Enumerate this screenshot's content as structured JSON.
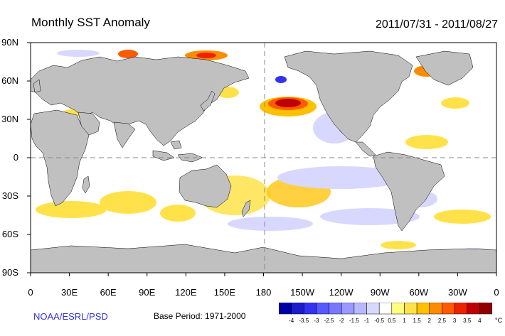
{
  "title": "Monthly SST Anomaly",
  "period": "2011/07/31 - 2011/08/27",
  "credit": "NOAA/ESRL/PSD",
  "base_period": "Base Period: 1971-2000",
  "y_ticks": [
    "90N",
    "60N",
    "30N",
    "0",
    "30S",
    "60S",
    "90S"
  ],
  "x_ticks": [
    "0",
    "30E",
    "60E",
    "90E",
    "120E",
    "150E",
    "180",
    "150W",
    "120W",
    "90W",
    "60W",
    "30W",
    "0"
  ],
  "colorbar": {
    "labels": [
      "-4",
      "-3.5",
      "-3",
      "-2.5",
      "-2",
      "-1.5",
      "-1",
      "-0.5",
      "0.5",
      "1",
      "1.5",
      "2",
      "2.5",
      "3",
      "3.5",
      "4"
    ],
    "unit": "°C",
    "colors": [
      "#0000a8",
      "#1c1ccc",
      "#3232f0",
      "#5858ff",
      "#7878ff",
      "#9999ff",
      "#b8b8ff",
      "#d8d8ff",
      "#ffffff",
      "#ffff80",
      "#ffe24a",
      "#ffc000",
      "#ff8c00",
      "#ff5a00",
      "#ee2200",
      "#c00000",
      "#900000"
    ]
  },
  "colors": {
    "land": "#c0c0c0",
    "ocean": "#ffffff",
    "grid": "#888888"
  }
}
